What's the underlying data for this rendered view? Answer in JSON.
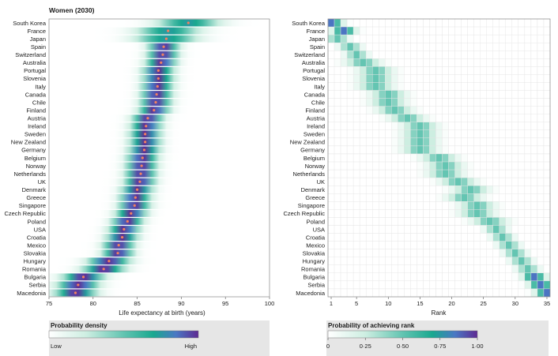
{
  "chart_data": [
    {
      "type": "heatmap",
      "title": "Women (2030)",
      "xlabel": "Life expectancy at birth (years)",
      "xlim": [
        75,
        100
      ],
      "xticks": [
        "75",
        "80",
        "85",
        "90",
        "95",
        "100"
      ],
      "categories": [
        "South Korea",
        "France",
        "Japan",
        "Spain",
        "Switzerland",
        "Australia",
        "Portugal",
        "Slovenia",
        "Italy",
        "Canada",
        "Chile",
        "Finland",
        "Austria",
        "Ireland",
        "Sweden",
        "New Zealand",
        "Germany",
        "Belgium",
        "Norway",
        "Netherlands",
        "UK",
        "Denmark",
        "Greece",
        "Singapore",
        "Czech Republic",
        "Poland",
        "USA",
        "Croatia",
        "Mexico",
        "Slovakia",
        "Hungary",
        "Romania",
        "Bulgaria",
        "Serbia",
        "Macedonia"
      ],
      "values": [
        90.8,
        88.5,
        88.3,
        88.0,
        87.9,
        87.7,
        87.4,
        87.4,
        87.3,
        87.2,
        87.1,
        86.9,
        86.2,
        86.0,
        85.9,
        85.9,
        85.8,
        85.6,
        85.5,
        85.4,
        85.3,
        85.0,
        84.8,
        84.7,
        84.3,
        83.9,
        83.5,
        83.3,
        82.9,
        82.8,
        81.8,
        81.2,
        78.9,
        78.3,
        78.0
      ],
      "legend": {
        "title": "Probability density",
        "low": "Low",
        "high": "High"
      },
      "colors": {
        "scale": [
          "#ffffff",
          "#cdeee1",
          "#62c4b1",
          "#19a88f",
          "#4a78c4",
          "#5e2a92"
        ],
        "marker": "#f08060"
      }
    },
    {
      "type": "heatmap",
      "xlabel": "Rank",
      "xlim": [
        1,
        35
      ],
      "xticks": [
        "1",
        "5",
        "10",
        "15",
        "20",
        "25",
        "30",
        "35"
      ],
      "categories": [
        "South Korea",
        "France",
        "Japan",
        "Spain",
        "Switzerland",
        "Australia",
        "Portugal",
        "Slovenia",
        "Italy",
        "Canada",
        "Chile",
        "Finland",
        "Austria",
        "Ireland",
        "Sweden",
        "New Zealand",
        "Germany",
        "Belgium",
        "Norway",
        "Netherlands",
        "UK",
        "Denmark",
        "Greece",
        "Singapore",
        "Czech Republic",
        "Poland",
        "USA",
        "Croatia",
        "Mexico",
        "Slovakia",
        "Hungary",
        "Romania",
        "Bulgaria",
        "Serbia",
        "Macedonia"
      ],
      "expected_rank": [
        1,
        3,
        2,
        4,
        5,
        6,
        8,
        8,
        8,
        10,
        10,
        11,
        13,
        15,
        15,
        15,
        15,
        18,
        19,
        19,
        21,
        23,
        22,
        24,
        24,
        26,
        27,
        28,
        29,
        30,
        31,
        32,
        33,
        34,
        35
      ],
      "legend": {
        "title": "Probability of achieving rank",
        "ticks": [
          "0",
          "0·25",
          "0·50",
          "0·75",
          "1·00"
        ]
      },
      "colors": {
        "scale": [
          "#ffffff",
          "#cdeee1",
          "#62c4b1",
          "#19a88f",
          "#4a78c4",
          "#5e2a92"
        ]
      }
    }
  ]
}
